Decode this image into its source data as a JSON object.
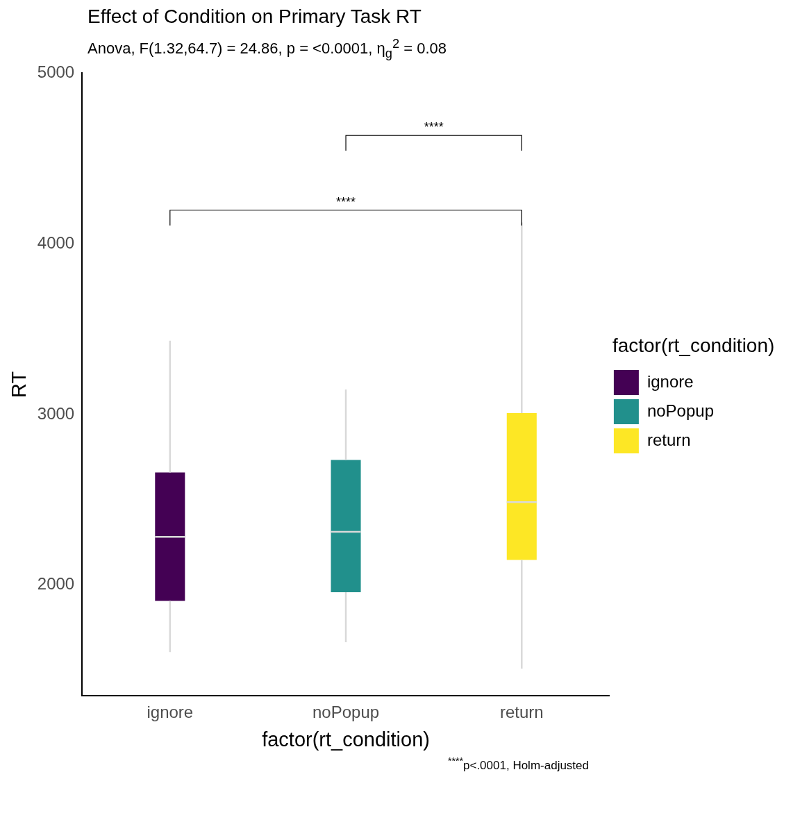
{
  "chart_data": {
    "type": "box",
    "title": "Effect of Condition on Primary Task RT",
    "subtitle": "Anova, F(1.32,64.7) = 24.86, p = <0.0001, η$_{g}$$^{2}$ = 0.08",
    "xlabel": "factor(rt_condition)",
    "ylabel": "RT",
    "legend_title": "factor(rt_condition)",
    "categories": [
      "ignore",
      "noPopup",
      "return"
    ],
    "series": [
      {
        "name": "ignore",
        "color": "#440154",
        "boxes": [
          {
            "low": 1607,
            "q1": 1907,
            "median": 2282,
            "q3": 2660,
            "high": 3432
          },
          null,
          null
        ]
      },
      {
        "name": "noPopup",
        "color": "#21908c",
        "boxes": [
          null,
          {
            "low": 1665,
            "q1": 1958,
            "median": 2312,
            "q3": 2733,
            "high": 3146
          },
          null
        ]
      },
      {
        "name": "return",
        "color": "#fde725",
        "boxes": [
          null,
          null,
          {
            "low": 1510,
            "q1": 2147,
            "median": 2486,
            "q3": 3008,
            "high": 4125
          }
        ]
      }
    ],
    "ylim": [
      1350,
      5000
    ],
    "yticks": [
      {
        "value": 2000,
        "label": "2000"
      },
      {
        "value": 3000,
        "label": "3000"
      },
      {
        "value": 4000,
        "label": "4000"
      },
      {
        "value": 5000,
        "label": "5000"
      }
    ],
    "grid": false,
    "legend": "right",
    "annotations": [
      "****",
      "****",
      "$^{****}$p<.0001, Holm-adjusted"
    ]
  }
}
